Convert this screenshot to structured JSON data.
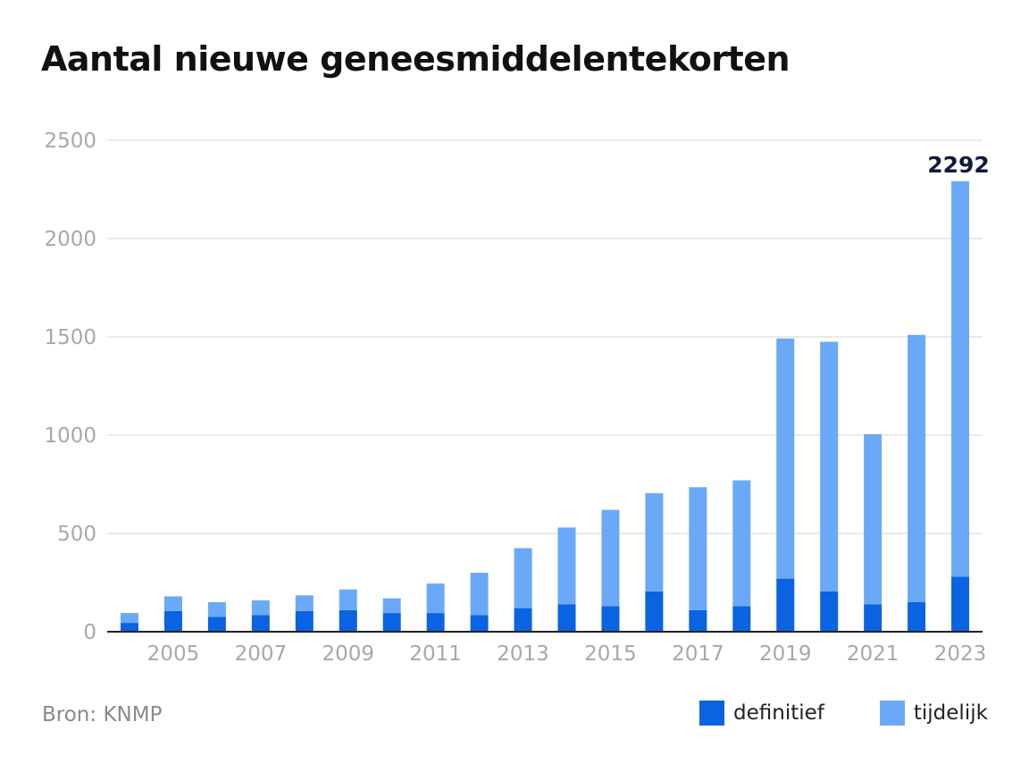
{
  "title": "Aantal nieuwe geneesmiddelentekorten",
  "source": "Bron: KNMP",
  "colors": {
    "definitief": "#0a63e0",
    "tijdelijk": "#6aa9f7"
  },
  "chart_data": {
    "type": "bar",
    "stacked": true,
    "categories": [
      "2004",
      "2005",
      "2006",
      "2007",
      "2008",
      "2009",
      "2010",
      "2011",
      "2012",
      "2013",
      "2014",
      "2015",
      "2016",
      "2017",
      "2018",
      "2019",
      "2020",
      "2021",
      "2022",
      "2023"
    ],
    "x_tick_labels": [
      "2005",
      "2007",
      "2009",
      "2011",
      "2013",
      "2015",
      "2017",
      "2019",
      "2021",
      "2023"
    ],
    "y_ticks": [
      "0",
      "500",
      "1000",
      "1500",
      "2000",
      "2500"
    ],
    "ylim": [
      0,
      2500
    ],
    "grid": true,
    "legend_position": "bottom-right",
    "series": [
      {
        "name": "definitief",
        "values": [
          45,
          105,
          75,
          85,
          105,
          110,
          95,
          95,
          85,
          120,
          140,
          130,
          205,
          110,
          130,
          270,
          205,
          140,
          150,
          280
        ]
      },
      {
        "name": "tijdelijk",
        "values": [
          50,
          75,
          75,
          75,
          80,
          105,
          75,
          150,
          215,
          305,
          390,
          490,
          500,
          625,
          640,
          1222,
          1270,
          865,
          1360,
          2012
        ]
      }
    ],
    "annotations": [
      {
        "category": "2023",
        "text": "2292"
      }
    ]
  }
}
